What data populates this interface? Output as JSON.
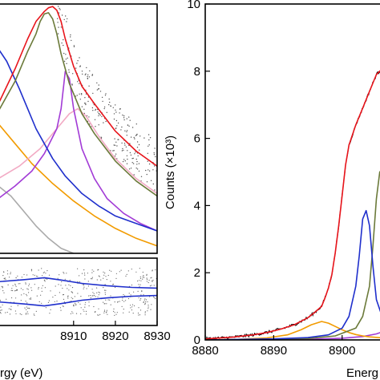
{
  "chart_data": [
    {
      "type": "line",
      "panel": "top-left",
      "title": "",
      "xlabel": "",
      "ylabel": "",
      "xlim": [
        8892,
        8930
      ],
      "ylim": [
        0,
        1.0
      ],
      "x_ticks": [],
      "grid": false,
      "legend": "none",
      "scatter_color": "#555555",
      "series": [
        {
          "color": "#e8141b",
          "x": [
            8892,
            8896,
            8899,
            8901,
            8903,
            8904,
            8905,
            8906,
            8907,
            8908,
            8910,
            8912,
            8915,
            8920,
            8925,
            8930
          ],
          "y": [
            0.6,
            0.74,
            0.86,
            0.93,
            0.97,
            0.985,
            0.99,
            0.975,
            0.93,
            0.86,
            0.75,
            0.67,
            0.6,
            0.49,
            0.41,
            0.35
          ]
        },
        {
          "color": "#6b7a3a",
          "x": [
            8892,
            8896,
            8899,
            8901,
            8902,
            8903,
            8904,
            8905,
            8906,
            8907,
            8909,
            8912,
            8915,
            8920,
            8925,
            8930
          ],
          "y": [
            0.57,
            0.69,
            0.81,
            0.88,
            0.93,
            0.96,
            0.965,
            0.94,
            0.88,
            0.8,
            0.68,
            0.56,
            0.48,
            0.37,
            0.29,
            0.23
          ]
        },
        {
          "color": "#1f2fcc",
          "x": [
            8892,
            8894,
            8897,
            8899,
            8901,
            8903,
            8905,
            8908,
            8912,
            8916,
            8920,
            8925,
            8930
          ],
          "y": [
            0.82,
            0.77,
            0.66,
            0.58,
            0.5,
            0.44,
            0.38,
            0.31,
            0.24,
            0.19,
            0.15,
            0.12,
            0.09
          ]
        },
        {
          "color": "#a23bd6",
          "x": [
            8892,
            8896,
            8900,
            8903,
            8906,
            8907,
            8908,
            8909,
            8910,
            8912,
            8915,
            8918,
            8922,
            8926,
            8930
          ],
          "y": [
            0.22,
            0.27,
            0.33,
            0.4,
            0.5,
            0.58,
            0.73,
            0.7,
            0.58,
            0.42,
            0.3,
            0.22,
            0.16,
            0.12,
            0.09
          ]
        },
        {
          "color": "#f2aac4",
          "x": [
            8892,
            8897,
            8902,
            8906,
            8909,
            8911,
            8913,
            8916,
            8920,
            8925,
            8930
          ],
          "y": [
            0.3,
            0.35,
            0.42,
            0.5,
            0.56,
            0.58,
            0.55,
            0.47,
            0.38,
            0.3,
            0.24
          ]
        },
        {
          "color": "#f29b00",
          "x": [
            8892,
            8896,
            8900,
            8905,
            8910,
            8915,
            8920,
            8925,
            8930
          ],
          "y": [
            0.52,
            0.44,
            0.36,
            0.28,
            0.21,
            0.15,
            0.1,
            0.06,
            0.03
          ]
        },
        {
          "color": "#aaaaaa",
          "x": [
            8892,
            8895,
            8898,
            8901,
            8904,
            8907,
            8910
          ],
          "y": [
            0.27,
            0.23,
            0.17,
            0.11,
            0.06,
            0.02,
            0.0
          ]
        }
      ]
    },
    {
      "type": "line",
      "panel": "bottom-left",
      "title": "",
      "xlabel": "rgy (eV)",
      "ylabel": "",
      "xlim": [
        8892,
        8930
      ],
      "ylim": [
        -1,
        1
      ],
      "x_ticks": [
        "8910",
        "8920",
        "8930"
      ],
      "x_tick_values": [
        8910,
        8920,
        8930
      ],
      "grid": false,
      "legend": "none",
      "series": [
        {
          "color": "#1f2fcc",
          "x": [
            8892,
            8898,
            8903,
            8907,
            8912,
            8918,
            8924,
            8930
          ],
          "y": [
            0.3,
            0.36,
            0.42,
            0.35,
            0.25,
            0.18,
            0.13,
            0.11
          ]
        },
        {
          "color": "#1f2fcc",
          "x": [
            8892,
            8898,
            8903,
            8907,
            8912,
            8918,
            8924,
            8930
          ],
          "y": [
            -0.3,
            -0.36,
            -0.42,
            -0.35,
            -0.25,
            -0.18,
            -0.13,
            -0.11
          ]
        }
      ]
    },
    {
      "type": "line",
      "panel": "right",
      "title": "",
      "xlabel": "Energ",
      "ylabel": "Counts (×10³)",
      "xlim": [
        8880,
        8906
      ],
      "ylim": [
        0,
        10
      ],
      "x_ticks": [
        "8880",
        "8890",
        "8900"
      ],
      "x_tick_values": [
        8880,
        8890,
        8900
      ],
      "y_ticks": [
        "0",
        "2",
        "4",
        "6",
        "8",
        "10"
      ],
      "y_tick_values": [
        0,
        2,
        4,
        6,
        8,
        10
      ],
      "grid": false,
      "legend": "none",
      "series": [
        {
          "color": "#e8141b",
          "x": [
            8880,
            8884,
            8887,
            8889,
            8891,
            8893,
            8895,
            8896,
            8897,
            8897.5,
            8898,
            8898.5,
            8899,
            8899.5,
            8900,
            8900.5,
            8901,
            8902,
            8903,
            8904,
            8905,
            8906
          ],
          "y": [
            0.03,
            0.08,
            0.15,
            0.22,
            0.32,
            0.45,
            0.66,
            0.82,
            1.0,
            1.25,
            1.55,
            1.95,
            2.6,
            3.4,
            4.3,
            5.2,
            5.8,
            6.4,
            6.9,
            7.4,
            7.9,
            8.1
          ]
        },
        {
          "color": "#1f2fcc",
          "x": [
            8880,
            8890,
            8895,
            8898,
            8900,
            8901,
            8902,
            8902.5,
            8903,
            8903.5,
            8904,
            8904.5,
            8905,
            8906
          ],
          "y": [
            0,
            0.03,
            0.07,
            0.15,
            0.35,
            0.7,
            1.6,
            2.5,
            3.6,
            3.85,
            3.4,
            2.2,
            1.2,
            0.6
          ]
        },
        {
          "color": "#6b7a3a",
          "x": [
            8880,
            8895,
            8899,
            8902,
            8903,
            8904,
            8904.5,
            8905,
            8905.5,
            8906
          ],
          "y": [
            0,
            0.04,
            0.12,
            0.35,
            0.7,
            1.6,
            2.8,
            4.2,
            5.0,
            5.1
          ]
        },
        {
          "color": "#f29b00",
          "x": [
            8880,
            8885,
            8889,
            8892,
            8894,
            8895.5,
            8897,
            8898,
            8899,
            8900,
            8901,
            8902,
            8903,
            8904,
            8906
          ],
          "y": [
            0,
            0.02,
            0.06,
            0.15,
            0.3,
            0.45,
            0.55,
            0.5,
            0.4,
            0.3,
            0.22,
            0.16,
            0.12,
            0.09,
            0.06
          ]
        },
        {
          "color": "#a23bd6",
          "x": [
            8880,
            8895,
            8900,
            8903,
            8905,
            8906
          ],
          "y": [
            0,
            0.02,
            0.05,
            0.1,
            0.18,
            0.25
          ]
        }
      ]
    }
  ]
}
